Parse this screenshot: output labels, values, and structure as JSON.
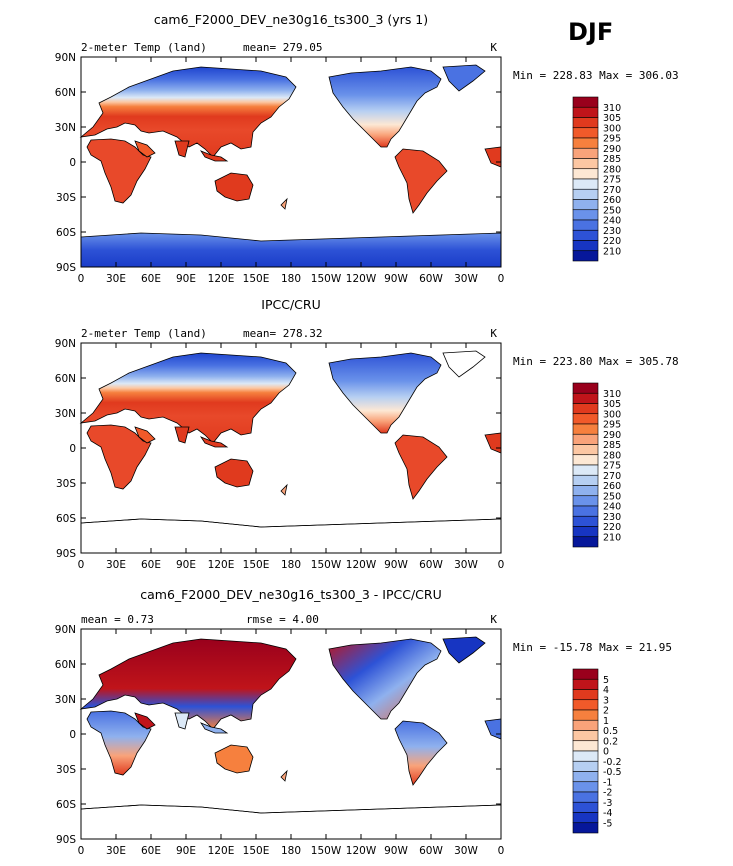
{
  "season": "DJF",
  "chart_data": [
    {
      "type": "heatmap",
      "title": "cam6_F2000_DEV_ne30g16_ts300_3 (yrs 1)",
      "left_label": "2-meter Temp (land)",
      "stat_text": "mean= 279.05",
      "units": "K",
      "minmax": "Min = 228.83 Max = 306.03",
      "xticks": [
        "0",
        "30E",
        "60E",
        "90E",
        "120E",
        "150E",
        "180",
        "150W",
        "120W",
        "90W",
        "60W",
        "30W",
        "0"
      ],
      "yticks": [
        "90N",
        "60N",
        "30N",
        "0",
        "30S",
        "60S",
        "90S"
      ],
      "colorbar_labels": [
        "310",
        "305",
        "300",
        "295",
        "290",
        "285",
        "280",
        "275",
        "270",
        "260",
        "250",
        "240",
        "230",
        "220",
        "210"
      ],
      "colorbar_colors": [
        "#99001c",
        "#c0141a",
        "#e03a1e",
        "#f15a2a",
        "#f6803e",
        "#f9a37a",
        "#fcc7a3",
        "#fde8d4",
        "#dce9f7",
        "#b6cff2",
        "#8fb1ee",
        "#6a92ea",
        "#4a72e2",
        "#2d52d6",
        "#1735c2",
        "#06179a"
      ],
      "has_antarctica": true
    },
    {
      "type": "heatmap",
      "title": "IPCC/CRU",
      "left_label": "2-meter Temp (land)",
      "stat_text": "mean= 278.32",
      "units": "K",
      "minmax": "Min = 223.80 Max = 305.78",
      "xticks": [
        "0",
        "30E",
        "60E",
        "90E",
        "120E",
        "150E",
        "180",
        "150W",
        "120W",
        "90W",
        "60W",
        "30W",
        "0"
      ],
      "yticks": [
        "90N",
        "60N",
        "30N",
        "0",
        "30S",
        "60S",
        "90S"
      ],
      "colorbar_labels": [
        "310",
        "305",
        "300",
        "295",
        "290",
        "285",
        "280",
        "275",
        "270",
        "260",
        "250",
        "240",
        "230",
        "220",
        "210"
      ],
      "colorbar_colors": [
        "#99001c",
        "#c0141a",
        "#e03a1e",
        "#f15a2a",
        "#f6803e",
        "#f9a37a",
        "#fcc7a3",
        "#fde8d4",
        "#dce9f7",
        "#b6cff2",
        "#8fb1ee",
        "#6a92ea",
        "#4a72e2",
        "#2d52d6",
        "#1735c2",
        "#06179a"
      ],
      "has_antarctica": false
    },
    {
      "type": "heatmap",
      "title": "cam6_F2000_DEV_ne30g16_ts300_3 - IPCC/CRU",
      "left_label": "mean =    0.73",
      "stat_text": "rmse =    4.00",
      "units": "K",
      "minmax": "Min = -15.78 Max =  21.95",
      "xticks": [
        "0",
        "30E",
        "60E",
        "90E",
        "120E",
        "150E",
        "180",
        "150W",
        "120W",
        "90W",
        "60W",
        "30W",
        "0"
      ],
      "yticks": [
        "90N",
        "60N",
        "30N",
        "0",
        "30S",
        "60S",
        "90S"
      ],
      "colorbar_labels": [
        "5",
        "4",
        "3",
        "2",
        "1",
        "0.5",
        "0.2",
        "0",
        "-0.2",
        "-0.5",
        "-1",
        "-2",
        "-3",
        "-4",
        "-5"
      ],
      "colorbar_colors": [
        "#99001c",
        "#c0141a",
        "#e03a1e",
        "#f15a2a",
        "#f6803e",
        "#f9a37a",
        "#fcc7a3",
        "#fde8d4",
        "#dce9f7",
        "#b6cff2",
        "#8fb1ee",
        "#6a92ea",
        "#4a72e2",
        "#2d52d6",
        "#1735c2",
        "#06179a"
      ],
      "has_antarctica": false
    }
  ]
}
